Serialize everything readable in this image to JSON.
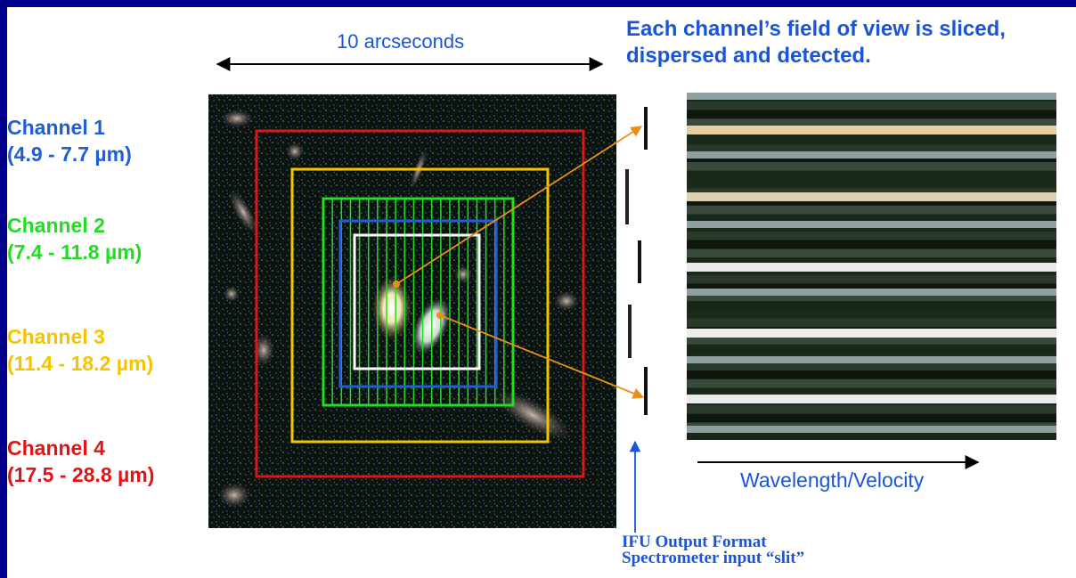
{
  "headline": [
    "Each channel’s field of view is sliced,",
    "dispersed and detected."
  ],
  "scale_label": "10 arcseconds",
  "axis_label": "Wavelength/Velocity",
  "slit_label": [
    "IFU Output Format",
    "Spectrometer input “slit”"
  ],
  "channels": [
    {
      "name": "Channel 1",
      "range": "(4.9 - 7.7 µm)",
      "color": "#1f5fd6"
    },
    {
      "name": "Channel 2",
      "range": "(7.4 - 11.8 µm)",
      "color": "#22dd22"
    },
    {
      "name": "Channel 3",
      "range": "(11.4 - 18.2 µm)",
      "color": "#f5c400"
    },
    {
      "name": "Channel 4",
      "range": "(17.5 - 28.8 µm)",
      "color": "#e01515"
    }
  ],
  "colors": {
    "border": "#00008b",
    "arrow": "#e8901a",
    "text_blue": "#1a55d8",
    "slice_white": "#ffffff"
  }
}
